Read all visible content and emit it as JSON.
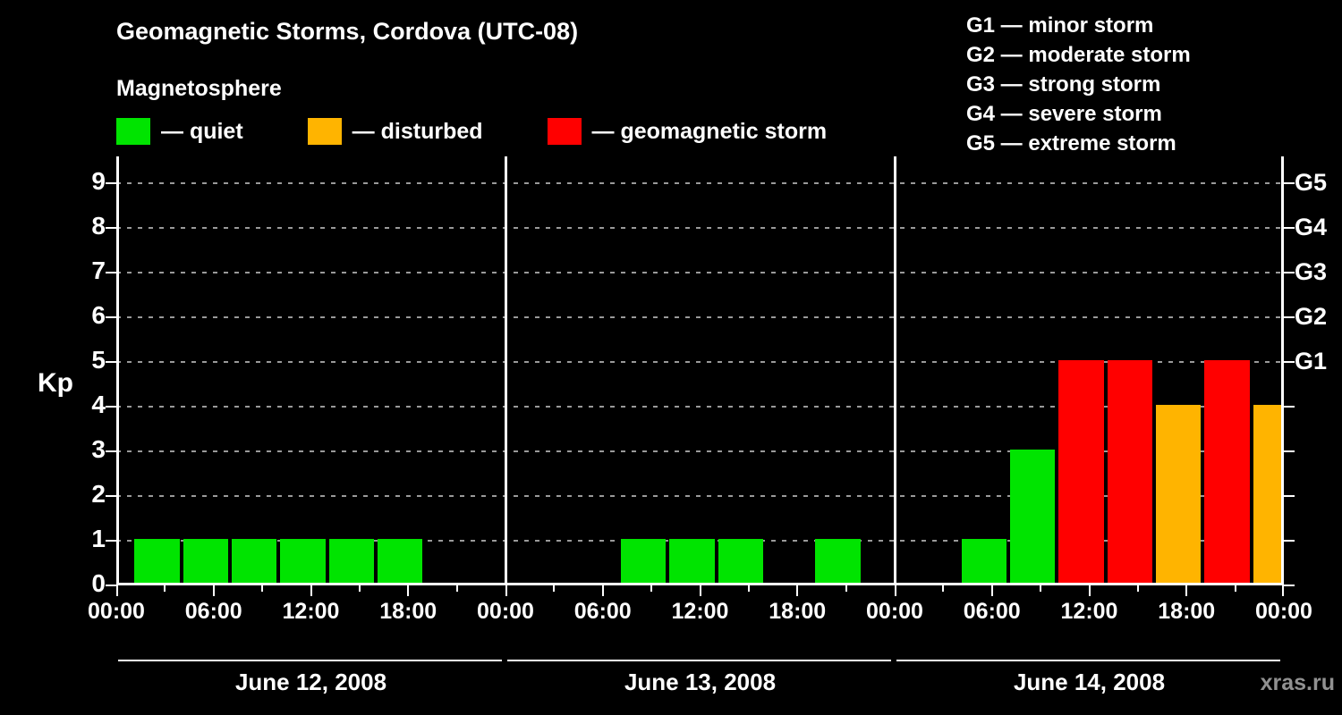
{
  "title": "Geomagnetic Storms, Cordova (UTC-08)",
  "legend": {
    "heading": "Magnetosphere",
    "items": [
      {
        "name": "quiet",
        "label": "— quiet",
        "color": "#00e400"
      },
      {
        "name": "disturbed",
        "label": "— disturbed",
        "color": "#ffb400"
      },
      {
        "name": "storm",
        "label": "— geomagnetic storm",
        "color": "#ff0000"
      }
    ]
  },
  "storm_scale": [
    "G1 — minor storm",
    "G2 — moderate storm",
    "G3 — strong storm",
    "G4 — severe storm",
    "G5 — extreme storm"
  ],
  "axis": {
    "ylabel": "Kp",
    "yticks": [
      0,
      1,
      2,
      3,
      4,
      5,
      6,
      7,
      8,
      9
    ],
    "xticks": [
      "00:00",
      "06:00",
      "12:00",
      "18:00"
    ],
    "xtick_final": "00:00",
    "right_labels": [
      {
        "kp": 5,
        "label": "G1"
      },
      {
        "kp": 6,
        "label": "G2"
      },
      {
        "kp": 7,
        "label": "G3"
      },
      {
        "kp": 8,
        "label": "G4"
      },
      {
        "kp": 9,
        "label": "G5"
      }
    ]
  },
  "watermark": "xras.ru",
  "chart_data": {
    "type": "bar",
    "title": "Geomagnetic Storms, Cordova (UTC-08)",
    "ylabel": "Kp",
    "ylim": [
      0,
      9.6
    ],
    "grid": "dashed horizontal lines at Kp 1-9",
    "legend_position": "top-left",
    "interval_hours": 3,
    "interval_start_hours": [
      1,
      4,
      7,
      10,
      13,
      16,
      19,
      22
    ],
    "days": [
      {
        "date": "June 12, 2008",
        "values": [
          1,
          1,
          1,
          1,
          1,
          1,
          0,
          0
        ]
      },
      {
        "date": "June 13, 2008",
        "values": [
          0,
          0,
          1,
          1,
          1,
          0,
          1,
          0
        ]
      },
      {
        "date": "June 14, 2008",
        "values": [
          0,
          1,
          3,
          5,
          5,
          4,
          5,
          4
        ]
      }
    ],
    "color_rules": {
      "quiet_max_kp": 3,
      "disturbed_kp": 4,
      "storm_min_kp": 5
    },
    "colors": {
      "quiet": "#00e400",
      "disturbed": "#ffb400",
      "storm": "#ff0000"
    }
  }
}
